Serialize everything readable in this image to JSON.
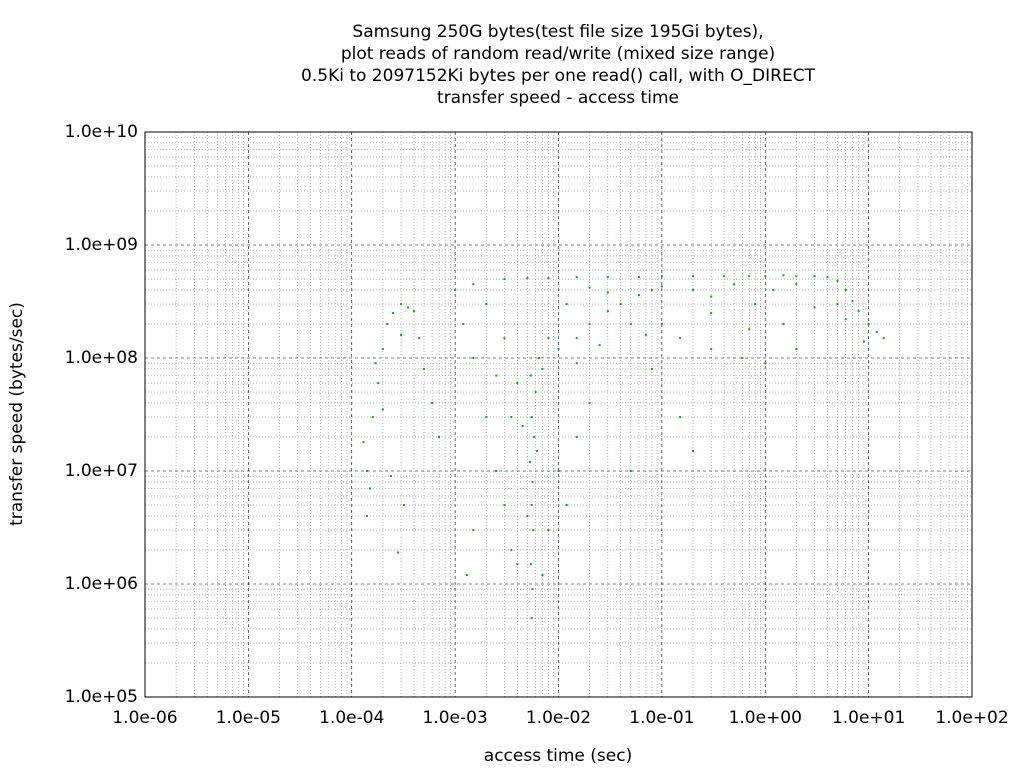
{
  "chart_data": {
    "type": "scatter",
    "title": [
      "Samsung 250G bytes(test file size 195Gi bytes),",
      "plot reads of random read/write (mixed size range)",
      "0.5Ki to 2097152Ki bytes per one read() call, with O_DIRECT",
      "transfer speed - access time"
    ],
    "x_label": "access time (sec)",
    "y_label": "transfer speed (bytes/sec)",
    "xscale": "log",
    "yscale": "log",
    "grid": true,
    "color": "#00b000",
    "xlim": [
      1e-06,
      100
    ],
    "ylim": [
      100000,
      10000000000
    ],
    "xticks": [
      {
        "value": 1e-06,
        "label": "1.0e-06"
      },
      {
        "value": 1e-05,
        "label": "1.0e-05"
      },
      {
        "value": 0.0001,
        "label": "1.0e-04"
      },
      {
        "value": 0.001,
        "label": "1.0e-03"
      },
      {
        "value": 0.01,
        "label": "1.0e-02"
      },
      {
        "value": 0.1,
        "label": "1.0e-01"
      },
      {
        "value": 1,
        "label": "1.0e+00"
      },
      {
        "value": 10,
        "label": "1.0e+01"
      },
      {
        "value": 100,
        "label": "1.0e+02"
      }
    ],
    "yticks": [
      {
        "value": 100000,
        "label": "1.0e+05"
      },
      {
        "value": 1000000,
        "label": "1.0e+06"
      },
      {
        "value": 10000000,
        "label": "1.0e+07"
      },
      {
        "value": 100000000,
        "label": "1.0e+08"
      },
      {
        "value": 1000000000,
        "label": "1.0e+09"
      },
      {
        "value": 10000000000,
        "label": "1.0e+10"
      }
    ],
    "xminorticks": [
      2e-06,
      3e-06,
      4e-06,
      5e-06,
      6e-06,
      7e-06,
      8e-06,
      9e-06,
      2e-05,
      3e-05,
      4e-05,
      5e-05,
      6e-05,
      7e-05,
      8e-05,
      9e-05,
      0.0002,
      0.0003,
      0.0004,
      0.0005,
      0.0006,
      0.0007,
      0.0008,
      0.0009,
      0.002,
      0.003,
      0.004,
      0.005,
      0.006,
      0.007,
      0.008,
      0.009,
      0.02,
      0.03,
      0.04,
      0.05,
      0.06,
      0.07,
      0.08,
      0.09,
      0.2,
      0.3,
      0.4,
      0.5,
      0.6,
      0.7,
      0.8,
      0.9,
      2,
      3,
      4,
      5,
      6,
      7,
      8,
      9,
      20,
      30,
      40,
      50,
      60,
      70,
      80,
      90
    ],
    "yminorticks": [
      200000,
      300000,
      400000,
      500000,
      600000,
      700000,
      800000,
      900000,
      2000000,
      3000000,
      4000000,
      5000000,
      6000000,
      7000000,
      8000000,
      9000000,
      20000000,
      30000000,
      40000000,
      50000000,
      60000000,
      70000000,
      80000000,
      90000000,
      200000000,
      300000000,
      400000000,
      500000000,
      600000000,
      700000000,
      800000000,
      900000000,
      2000000000,
      3000000000,
      4000000000,
      5000000000,
      6000000000,
      7000000000,
      8000000000,
      9000000000
    ],
    "x": [
      0.00013,
      0.00014,
      0.00015,
      0.00016,
      0.00018,
      0.0002,
      0.00022,
      0.00025,
      0.0003,
      0.00035,
      0.0004,
      0.00028,
      0.00032,
      0.00024,
      0.00045,
      0.0005,
      0.0006,
      0.0007,
      0.0013,
      0.0015,
      0.0002,
      0.00017,
      0.0003,
      0.00014,
      0.0055,
      0.0056,
      0.0054,
      0.0057,
      0.0055,
      0.0056,
      0.0053,
      0.0058,
      0.0055,
      0.006,
      0.0054,
      0.0065,
      0.005,
      0.0062,
      0.0012,
      0.0015,
      0.002,
      0.0025,
      0.003,
      0.0035,
      0.004,
      0.002,
      0.003,
      0.004,
      0.0045,
      0.0025,
      0.0035,
      0.007,
      0.008,
      0.01,
      0.012,
      0.015,
      0.02,
      0.008,
      0.001,
      0.0015,
      0.007,
      0.01,
      0.015,
      0.02,
      0.03,
      0.04,
      0.06,
      0.08,
      0.1,
      0.015,
      0.025,
      0.05,
      0.07,
      0.1,
      0.03,
      0.012,
      0.02,
      0.003,
      0.005,
      0.008,
      0.015,
      0.03,
      0.06,
      0.1,
      0.2,
      0.4,
      0.7,
      1,
      1.5,
      2,
      3,
      4,
      0.2,
      0.3,
      0.5,
      0.8,
      1.2,
      2,
      0.15,
      0.3,
      0.6,
      1,
      0.08,
      0.15,
      0.2,
      0.05,
      0.3,
      2,
      3,
      1.5,
      0.7,
      5,
      6,
      7,
      8,
      10,
      12,
      14,
      6,
      9,
      5
    ],
    "values": [
      18000000,
      4000000,
      7000000,
      30000000,
      60000000,
      120000000,
      200000000,
      250000000,
      300000000,
      280000000,
      260000000,
      1900000,
      5000000,
      9000000,
      150000000,
      80000000,
      40000000,
      20000000,
      1200000,
      3000000,
      35000000,
      90000000,
      160000000,
      10000000,
      500000,
      900000,
      1500000,
      3000000,
      5000000,
      8000000,
      12000000,
      20000000,
      30000000,
      50000000,
      70000000,
      100000000,
      4000000,
      15000000,
      200000000,
      100000000,
      30000000,
      10000000,
      5000000,
      2000000,
      1500000,
      300000000,
      150000000,
      60000000,
      25000000,
      70000000,
      30000000,
      1200000,
      3000000,
      10000000,
      5000000,
      20000000,
      40000000,
      150000000,
      400000000,
      450000000,
      80000000,
      120000000,
      150000000,
      200000000,
      260000000,
      300000000,
      360000000,
      400000000,
      430000000,
      90000000,
      130000000,
      200000000,
      160000000,
      200000000,
      380000000,
      300000000,
      420000000,
      500000000,
      510000000,
      510000000,
      520000000,
      520000000,
      520000000,
      530000000,
      530000000,
      530000000,
      530000000,
      530000000,
      540000000,
      530000000,
      530000000,
      520000000,
      400000000,
      350000000,
      450000000,
      300000000,
      400000000,
      450000000,
      150000000,
      120000000,
      100000000,
      90000000,
      80000000,
      30000000,
      15000000,
      10000000,
      250000000,
      120000000,
      280000000,
      200000000,
      180000000,
      480000000,
      400000000,
      320000000,
      260000000,
      200000000,
      170000000,
      150000000,
      220000000,
      140000000,
      300000000
    ]
  }
}
